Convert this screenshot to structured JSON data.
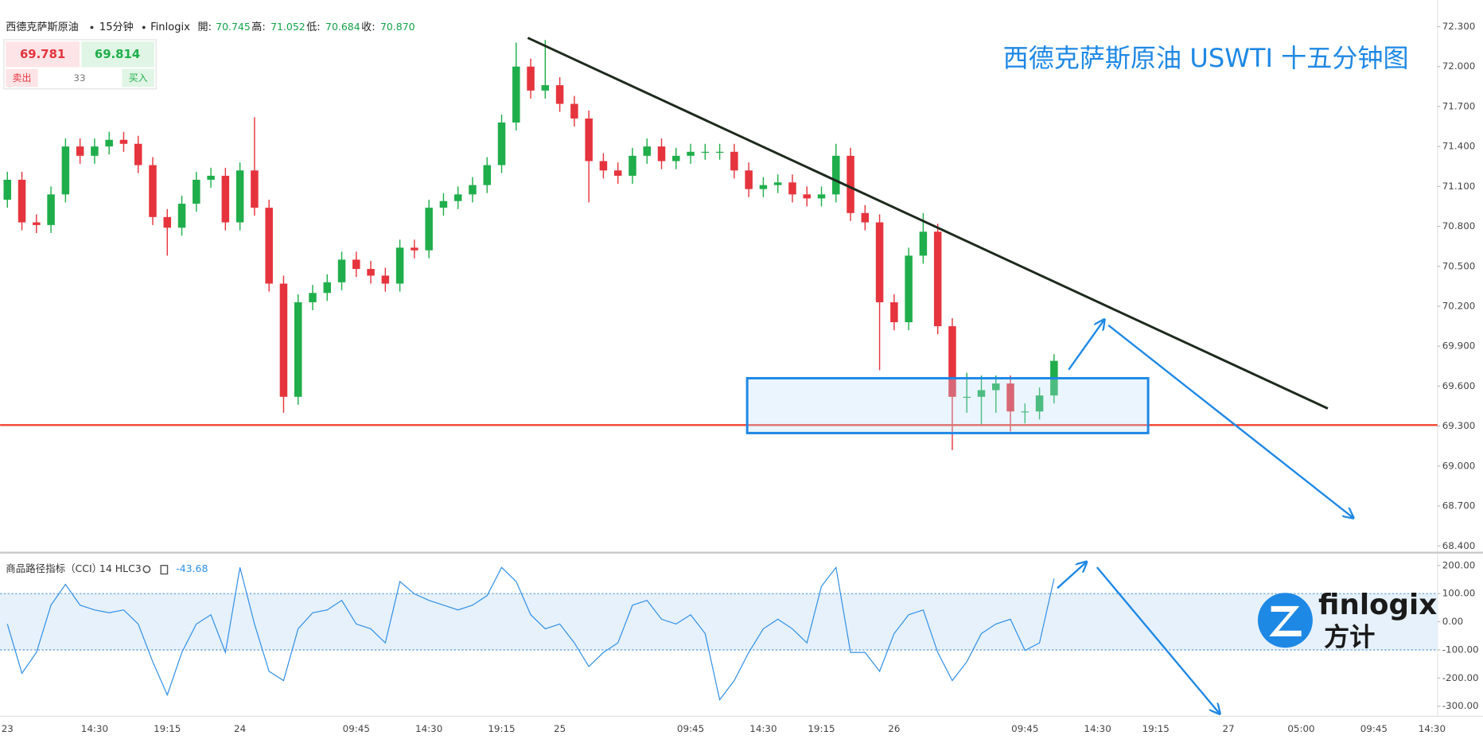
{
  "header": {
    "symbol": "西德克萨斯原油",
    "interval": "15分钟",
    "source": "Finlogix",
    "open_label": "開:",
    "open": "70.745",
    "high_label": "高:",
    "high": "71.052",
    "low_label": "低:",
    "low": "70.684",
    "close_label": "收:",
    "close": "70.870"
  },
  "quote": {
    "sell_price": "69.781",
    "buy_price": "69.814",
    "sell_label": "卖出",
    "spread": "33",
    "buy_label": "买入"
  },
  "brand": {
    "name": "finlogix",
    "name_cn": "方计"
  },
  "chart_data": [
    {
      "type": "candlestick",
      "title": "西德克萨斯原油 USWTI 十五分钟图",
      "up_color": "#1fae4b",
      "down_color": "#e5343d",
      "ylim": [
        68.36,
        72.5
      ],
      "yticks": [
        {
          "value": 72.3,
          "label": "72.300"
        },
        {
          "value": 72.0,
          "label": "72.000"
        },
        {
          "value": 71.7,
          "label": "71.700"
        },
        {
          "value": 71.4,
          "label": "71.400"
        },
        {
          "value": 71.1,
          "label": "71.100"
        },
        {
          "value": 70.8,
          "label": "70.800"
        },
        {
          "value": 70.5,
          "label": "70.500"
        },
        {
          "value": 70.2,
          "label": "70.200"
        },
        {
          "value": 69.9,
          "label": "69.900"
        },
        {
          "value": 69.6,
          "label": "69.600"
        },
        {
          "value": 69.3,
          "label": "69.300"
        },
        {
          "value": 69.0,
          "label": "69.000"
        },
        {
          "value": 68.7,
          "label": "68.700"
        },
        {
          "value": 68.4,
          "label": "68.400"
        }
      ],
      "open": [
        71.0,
        71.15,
        70.83,
        70.81,
        71.04,
        71.4,
        71.33,
        71.4,
        71.45,
        71.42,
        71.26,
        70.87,
        70.79,
        70.97,
        71.15,
        71.18,
        70.83,
        71.22,
        70.94,
        70.37,
        69.52,
        70.23,
        70.3,
        70.38,
        70.55,
        70.48,
        70.43,
        70.37,
        70.64,
        70.62,
        70.94,
        70.99,
        71.04,
        71.11,
        71.26,
        71.58,
        72.0,
        71.82,
        71.86,
        71.72,
        71.61,
        71.29,
        71.22,
        71.18,
        71.33,
        71.4,
        71.29,
        71.33,
        71.36,
        71.36,
        71.36,
        71.22,
        71.08,
        71.11,
        71.13,
        71.04,
        71.01,
        71.04,
        71.33,
        70.9,
        70.83,
        70.23,
        70.08,
        70.58,
        70.76,
        70.05,
        69.52,
        69.52,
        69.57,
        69.62,
        69.41,
        69.41,
        69.53,
        null,
        null,
        null,
        null,
        null,
        null,
        null,
        null,
        null,
        null,
        null,
        null,
        null,
        null,
        null,
        null,
        null,
        null,
        null,
        null,
        null,
        null,
        null,
        null,
        null,
        null,
        null,
        null,
        null
      ],
      "high": [
        71.21,
        71.21,
        70.89,
        71.1,
        71.46,
        71.46,
        71.46,
        71.51,
        71.51,
        71.48,
        71.32,
        70.93,
        71.03,
        71.21,
        71.24,
        71.24,
        71.28,
        71.62,
        71.0,
        70.43,
        70.29,
        70.36,
        70.44,
        70.61,
        70.61,
        70.54,
        70.49,
        70.7,
        70.7,
        71.0,
        71.05,
        71.1,
        71.17,
        71.32,
        71.64,
        72.18,
        72.06,
        72.2,
        71.92,
        71.78,
        71.67,
        71.35,
        71.28,
        71.39,
        71.46,
        71.46,
        71.39,
        71.42,
        71.42,
        71.42,
        71.42,
        71.28,
        71.17,
        71.19,
        71.19,
        71.1,
        71.1,
        71.42,
        71.39,
        70.96,
        70.89,
        70.29,
        70.64,
        70.9,
        70.82,
        70.11,
        69.7,
        69.68,
        69.68,
        69.68,
        69.47,
        69.59,
        69.84,
        null,
        null,
        null,
        null,
        null,
        null,
        null,
        null,
        null,
        null,
        null,
        null,
        null,
        null,
        null,
        null,
        null,
        null,
        null,
        null,
        null,
        null,
        null,
        null,
        null,
        null,
        null,
        null,
        null
      ],
      "low": [
        70.94,
        70.77,
        70.75,
        70.75,
        70.98,
        71.27,
        71.27,
        71.34,
        71.36,
        71.2,
        70.81,
        70.58,
        70.73,
        70.91,
        71.09,
        70.77,
        70.77,
        70.88,
        70.31,
        69.4,
        69.46,
        70.17,
        70.24,
        70.32,
        70.42,
        70.37,
        70.31,
        70.31,
        70.56,
        70.56,
        70.88,
        70.93,
        70.98,
        71.05,
        71.2,
        71.52,
        71.76,
        71.76,
        71.66,
        71.55,
        70.98,
        71.16,
        71.12,
        71.12,
        71.27,
        71.23,
        71.23,
        71.27,
        71.3,
        71.3,
        71.16,
        71.02,
        71.02,
        71.05,
        70.98,
        70.95,
        70.95,
        70.98,
        70.84,
        70.77,
        69.72,
        70.02,
        70.02,
        70.52,
        69.99,
        69.12,
        69.4,
        69.3,
        69.4,
        69.26,
        69.32,
        69.35,
        69.47,
        null,
        null,
        null,
        null,
        null,
        null,
        null,
        null,
        null,
        null,
        null,
        null,
        null,
        null,
        null,
        null,
        null,
        null,
        null,
        null,
        null,
        null,
        null,
        null,
        null,
        null,
        null,
        null,
        null
      ],
      "close": [
        71.15,
        70.83,
        70.81,
        71.04,
        71.4,
        71.33,
        71.4,
        71.45,
        71.42,
        71.26,
        70.87,
        70.79,
        70.97,
        71.15,
        71.18,
        70.83,
        71.22,
        70.94,
        70.37,
        69.52,
        70.23,
        70.3,
        70.38,
        70.55,
        70.48,
        70.43,
        70.37,
        70.64,
        70.62,
        70.94,
        70.99,
        71.04,
        71.11,
        71.26,
        71.58,
        72.0,
        71.82,
        71.86,
        71.72,
        71.61,
        71.29,
        71.22,
        71.18,
        71.33,
        71.4,
        71.29,
        71.33,
        71.36,
        71.36,
        71.36,
        71.22,
        71.08,
        71.11,
        71.13,
        71.04,
        71.01,
        71.04,
        71.33,
        70.9,
        70.83,
        70.23,
        70.08,
        70.58,
        70.76,
        70.05,
        69.52,
        69.52,
        69.57,
        69.62,
        69.41,
        69.41,
        69.53,
        69.79,
        null,
        null,
        null,
        null,
        null,
        null,
        null,
        null,
        null,
        null,
        null,
        null,
        null,
        null,
        null,
        null,
        null,
        null,
        null,
        null,
        null,
        null,
        null,
        null,
        null,
        null,
        null,
        null,
        null
      ]
    },
    {
      "type": "line",
      "title": "商品路径指标（CCI）",
      "params": "14 HLC3",
      "current_value": -43.68,
      "color": "#2f8ee5",
      "band": [
        -100,
        100
      ],
      "band_color": "#e6f1fc",
      "ylim": [
        -334,
        237
      ],
      "yticks": [
        {
          "value": 200,
          "label": "200.00"
        },
        {
          "value": 100,
          "label": "100.00"
        },
        {
          "value": 0,
          "label": "0.00"
        },
        {
          "value": -100,
          "label": "-100.00"
        },
        {
          "value": -200,
          "label": "-200.00"
        },
        {
          "value": -300,
          "label": "-300.00"
        }
      ],
      "categories": [
        "23",
        null,
        null,
        null,
        null,
        null,
        "14:30",
        null,
        null,
        null,
        null,
        "19:15",
        null,
        null,
        null,
        null,
        "24",
        null,
        null,
        null,
        null,
        null,
        null,
        null,
        "09:45",
        null,
        null,
        null,
        null,
        "14:30",
        null,
        null,
        null,
        null,
        "19:15",
        null,
        null,
        null,
        "25",
        null,
        null,
        null,
        null,
        null,
        null,
        null,
        null,
        "09:45",
        null,
        null,
        null,
        null,
        "14:30",
        null,
        null,
        null,
        "19:15",
        null,
        null,
        null,
        null,
        "26",
        null,
        null,
        null,
        null,
        null,
        null,
        null,
        null,
        "09:45",
        null,
        null,
        null,
        null,
        "14:30",
        null,
        null,
        null,
        "19:15",
        null,
        null,
        null,
        null,
        "27",
        null,
        null,
        null,
        null,
        "05:00",
        null,
        null,
        null,
        null,
        "09:45",
        null,
        null,
        null,
        "14:30",
        null,
        null,
        null
      ],
      "values": [
        -8,
        -183,
        -109,
        59,
        133,
        59,
        42,
        32,
        42,
        -8,
        -142,
        -260,
        -109,
        -8,
        25,
        -109,
        193,
        -8,
        -176,
        -209,
        -25,
        32,
        42,
        76,
        -8,
        -25,
        -75,
        143,
        99,
        76,
        59,
        42,
        59,
        93,
        193,
        143,
        25,
        -25,
        -8,
        -75,
        -159,
        -109,
        -75,
        59,
        76,
        9,
        -8,
        25,
        -42,
        -277,
        -209,
        -109,
        -25,
        9,
        -25,
        -75,
        126,
        193,
        -109,
        -109,
        -176,
        -42,
        25,
        42,
        -109,
        -209,
        -142,
        -42,
        -8,
        9,
        -102,
        -75,
        153,
        null,
        null,
        null,
        null,
        null,
        null,
        null,
        null,
        null,
        null,
        null,
        null,
        null,
        null,
        null,
        null,
        null,
        null,
        null,
        null,
        null,
        null,
        null,
        null,
        null,
        null,
        null,
        null,
        null
      ]
    }
  ]
}
